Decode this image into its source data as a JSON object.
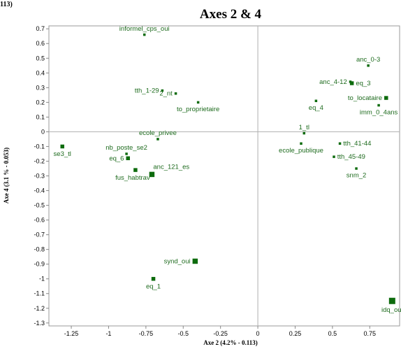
{
  "corner_text": "113)",
  "chart_data": {
    "type": "scatter",
    "title": "Axes 2 & 4",
    "xlabel": "Axe 2 (4.2% - 0.113)",
    "ylabel": "Axe 4 (3.1 % - 0.053)",
    "xlim": [
      -1.4,
      0.95
    ],
    "ylim": [
      -1.32,
      0.72
    ],
    "xticks": [
      "-1.25",
      "-1",
      "-0.75",
      "-0.5",
      "-0.25",
      "0",
      "0.25",
      "0.5",
      "0.75"
    ],
    "xtick_values": [
      -1.25,
      -1,
      -0.75,
      -0.5,
      -0.25,
      0,
      0.25,
      0.5,
      0.75
    ],
    "yticks": [
      "0.7",
      "0.6",
      "0.5",
      "0.4",
      "0.3",
      "0.2",
      "0.1",
      "0",
      "-0.1",
      "-0.2",
      "-0.3",
      "-0.4",
      "-0.5",
      "-0.6",
      "-0.7",
      "-0.8",
      "-0.9",
      "-1",
      "-1.1",
      "-1.2",
      "-1.3"
    ],
    "ytick_values": [
      0.7,
      0.6,
      0.5,
      0.4,
      0.3,
      0.2,
      0.1,
      0,
      -0.1,
      -0.2,
      -0.3,
      -0.4,
      -0.5,
      -0.6,
      -0.7,
      -0.8,
      -0.9,
      -1,
      -1.1,
      -1.2,
      -1.3
    ],
    "grid": false,
    "marker_color": "#0d6b0d",
    "label_color": "#1e6b1e",
    "points": [
      {
        "label": "informel_cps_oui",
        "x": -0.76,
        "y": 0.66,
        "size": "small",
        "label_pos": "above"
      },
      {
        "label": "tth_1-29",
        "x": -0.64,
        "y": 0.28,
        "size": "small",
        "label_pos": "left"
      },
      {
        "label": "2_nt",
        "x": -0.55,
        "y": 0.26,
        "size": "small",
        "label_pos": "left"
      },
      {
        "label": "to_proprietaire",
        "x": -0.4,
        "y": 0.2,
        "size": "small",
        "label_pos": "below"
      },
      {
        "label": "anc_0-3",
        "x": 0.74,
        "y": 0.45,
        "size": "small",
        "label_pos": "above"
      },
      {
        "label": "anc_4-12",
        "x": 0.62,
        "y": 0.34,
        "size": "small",
        "label_pos": "left"
      },
      {
        "label": "eq_3",
        "x": 0.63,
        "y": 0.33,
        "size": "medium",
        "label_pos": "right"
      },
      {
        "label": "to_locataire",
        "x": 0.86,
        "y": 0.23,
        "size": "medium",
        "label_pos": "left"
      },
      {
        "label": "eq_4",
        "x": 0.39,
        "y": 0.21,
        "size": "small",
        "label_pos": "below"
      },
      {
        "label": "imm_0_4ans",
        "x": 0.81,
        "y": 0.18,
        "size": "small",
        "label_pos": "below"
      },
      {
        "label": "1_tl",
        "x": 0.31,
        "y": -0.01,
        "size": "small",
        "label_pos": "above"
      },
      {
        "label": "ecole_privee",
        "x": -0.67,
        "y": -0.05,
        "size": "small",
        "label_pos": "above"
      },
      {
        "label": "se3_tl",
        "x": -1.31,
        "y": -0.1,
        "size": "medium",
        "label_pos": "below"
      },
      {
        "label": "nb_poste_se2",
        "x": -0.88,
        "y": -0.15,
        "size": "small",
        "label_pos": "above"
      },
      {
        "label": "ecole_publique",
        "x": 0.29,
        "y": -0.08,
        "size": "small",
        "label_pos": "below"
      },
      {
        "label": "tth_41-44",
        "x": 0.55,
        "y": -0.08,
        "size": "small",
        "label_pos": "right"
      },
      {
        "label": "tth_45-49",
        "x": 0.51,
        "y": -0.17,
        "size": "small",
        "label_pos": "right"
      },
      {
        "label": "snm_2",
        "x": 0.66,
        "y": -0.25,
        "size": "small",
        "label_pos": "below"
      },
      {
        "label": "eq_6",
        "x": -0.87,
        "y": -0.18,
        "size": "medium",
        "label_pos": "left"
      },
      {
        "label": "fus_habtrav",
        "x": -0.82,
        "y": -0.26,
        "size": "medium",
        "label_pos": "below-left"
      },
      {
        "label": "anc_121_es",
        "x": -0.71,
        "y": -0.29,
        "size": "large",
        "label_pos": "above-right"
      },
      {
        "label": "synd_oui",
        "x": -0.42,
        "y": -0.88,
        "size": "large",
        "label_pos": "left"
      },
      {
        "label": "eq_1",
        "x": -0.7,
        "y": -1.0,
        "size": "medium",
        "label_pos": "below"
      },
      {
        "label": "idq_oui",
        "x": 0.9,
        "y": -1.15,
        "size": "xlarge",
        "label_pos": "below"
      }
    ]
  }
}
